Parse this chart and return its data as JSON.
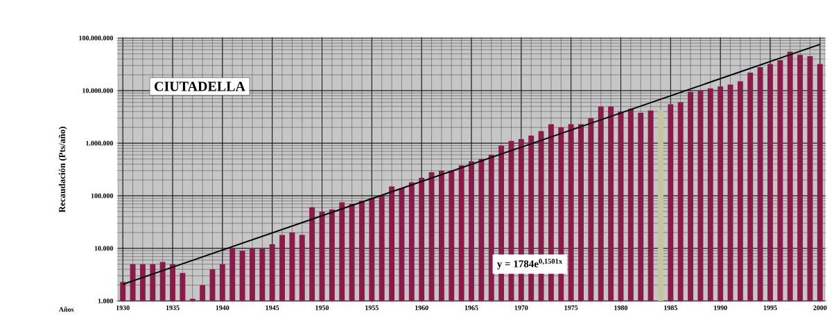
{
  "chart_data": {
    "type": "bar",
    "title": "CIUTADELLA",
    "xlabel": "Años",
    "ylabel": "Recaudación (Pts/año)",
    "x": [
      1930,
      1931,
      1932,
      1933,
      1934,
      1935,
      1936,
      1937,
      1938,
      1939,
      1940,
      1941,
      1942,
      1943,
      1944,
      1945,
      1946,
      1947,
      1948,
      1949,
      1950,
      1951,
      1952,
      1953,
      1954,
      1955,
      1956,
      1957,
      1958,
      1959,
      1960,
      1961,
      1962,
      1963,
      1964,
      1965,
      1966,
      1967,
      1968,
      1969,
      1970,
      1971,
      1972,
      1973,
      1974,
      1975,
      1976,
      1977,
      1978,
      1979,
      1980,
      1981,
      1982,
      1983,
      1984,
      1985,
      1986,
      1987,
      1988,
      1989,
      1990,
      1991,
      1992,
      1993,
      1994,
      1995,
      1996,
      1997,
      1998,
      1999,
      2000
    ],
    "xlim": [
      1929.5,
      2000.5
    ],
    "xticks": [
      1930,
      1935,
      1940,
      1945,
      1950,
      1955,
      1960,
      1965,
      1970,
      1975,
      1980,
      1985,
      1990,
      1995,
      2000
    ],
    "ylim": [
      1000,
      100000000
    ],
    "yticks": [
      {
        "value": 1000,
        "label": "1.000"
      },
      {
        "value": 10000,
        "label": "10.000"
      },
      {
        "value": 100000,
        "label": "100.000"
      },
      {
        "value": 1000000,
        "label": "1.000.000"
      },
      {
        "value": 10000000,
        "label": "10.000.000"
      },
      {
        "value": 100000000,
        "label": "100.000.000"
      }
    ],
    "log": "y",
    "grid": true,
    "series": [
      {
        "colors": [
          "#8b1a4a",
          "#8b1a4a",
          "#8b1a4a",
          "#8b1a4a",
          "#8b1a4a",
          "#8b1a4a",
          "#8b1a4a",
          "#8b1a4a",
          "#8b1a4a",
          "#8b1a4a",
          "#8b1a4a",
          "#8b1a4a",
          "#8b1a4a",
          "#8b1a4a",
          "#8b1a4a",
          "#8b1a4a",
          "#8b1a4a",
          "#8b1a4a",
          "#8b1a4a",
          "#8b1a4a",
          "#8b1a4a",
          "#8b1a4a",
          "#8b1a4a",
          "#8b1a4a",
          "#8b1a4a",
          "#8b1a4a",
          "#8b1a4a",
          "#8b1a4a",
          "#8b1a4a",
          "#8b1a4a",
          "#8b1a4a",
          "#8b1a4a",
          "#8b1a4a",
          "#8b1a4a",
          "#8b1a4a",
          "#8b1a4a",
          "#8b1a4a",
          "#8b1a4a",
          "#8b1a4a",
          "#8b1a4a",
          "#8b1a4a",
          "#8b1a4a",
          "#8b1a4a",
          "#8b1a4a",
          "#8b1a4a",
          "#8b1a4a",
          "#8b1a4a",
          "#8b1a4a",
          "#8b1a4a",
          "#8b1a4a",
          "#8b1a4a",
          "#8b1a4a",
          "#8b1a4a",
          "#8b1a4a",
          "#c8c49c",
          "#8b1a4a",
          "#8b1a4a",
          "#8b1a4a",
          "#8b1a4a",
          "#8b1a4a",
          "#8b1a4a",
          "#8b1a4a",
          "#8b1a4a",
          "#8b1a4a",
          "#8b1a4a",
          "#8b1a4a",
          "#8b1a4a",
          "#8b1a4a",
          "#8b1a4a",
          "#8b1a4a",
          "#8b1a4a"
        ],
        "values": [
          2300,
          5000,
          5000,
          5000,
          5500,
          5000,
          3400,
          1100,
          2000,
          4000,
          5000,
          10000,
          9000,
          10000,
          10000,
          12000,
          18000,
          20000,
          18000,
          60000,
          50000,
          55000,
          75000,
          70000,
          80000,
          90000,
          100000,
          150000,
          140000,
          180000,
          220000,
          280000,
          300000,
          300000,
          380000,
          450000,
          500000,
          600000,
          900000,
          1100000,
          1200000,
          1400000,
          1700000,
          2300000,
          2000000,
          2300000,
          2300000,
          3000000,
          5000000,
          5000000,
          4000000,
          4500000,
          3800000,
          4200000,
          4200000,
          5500000,
          6000000,
          9500000,
          10000000,
          11000000,
          12000000,
          13000000,
          15000000,
          22000000,
          28000000,
          32000000,
          38000000,
          55000000,
          48000000,
          45000000,
          32000000
        ]
      },
      {
        "type": "line",
        "color": "#000000",
        "x": [
          1930,
          2000
        ],
        "values": [
          2073,
          75900000
        ]
      }
    ],
    "annotations": [
      "y = 1784e$^{0,1501x}$"
    ]
  }
}
